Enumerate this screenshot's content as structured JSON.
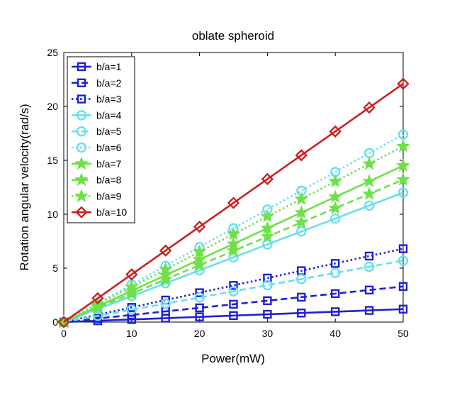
{
  "chart_data": {
    "type": "line",
    "title": "oblate spheroid",
    "xlabel": "Power(mW)",
    "ylabel": "Rotation angular velocity(rad/s)",
    "xlim": [
      0,
      50
    ],
    "ylim": [
      0,
      25
    ],
    "xticks": [
      0,
      10,
      20,
      30,
      40,
      50
    ],
    "yticks": [
      0,
      5,
      10,
      15,
      20,
      25
    ],
    "grid": false,
    "legend_position": "top-left",
    "x": [
      0,
      5,
      10,
      15,
      20,
      25,
      30,
      35,
      40,
      45,
      50
    ],
    "series": [
      {
        "name": "b/a=1",
        "color": "#1f1fd6",
        "dash": "solid",
        "marker": "square",
        "values": [
          0,
          0.12,
          0.24,
          0.36,
          0.48,
          0.6,
          0.72,
          0.84,
          0.96,
          1.08,
          1.2
        ]
      },
      {
        "name": "b/a=2",
        "color": "#1f1fd6",
        "dash": "dashed",
        "marker": "square",
        "values": [
          0,
          0.33,
          0.66,
          0.99,
          1.32,
          1.65,
          1.98,
          2.31,
          2.64,
          2.97,
          3.3
        ]
      },
      {
        "name": "b/a=3",
        "color": "#1f1fd6",
        "dash": "dotted",
        "marker": "square",
        "values": [
          0,
          0.68,
          1.36,
          2.04,
          2.72,
          3.4,
          4.08,
          4.76,
          5.44,
          6.12,
          6.8
        ]
      },
      {
        "name": "b/a=4",
        "color": "#66e0f0",
        "dash": "solid",
        "marker": "circle",
        "values": [
          0,
          1.2,
          2.4,
          3.6,
          4.8,
          6.0,
          7.2,
          8.4,
          9.6,
          10.8,
          12.0
        ]
      },
      {
        "name": "b/a=5",
        "color": "#66e0f0",
        "dash": "dashed",
        "marker": "circle",
        "values": [
          0,
          0.57,
          1.14,
          1.71,
          2.28,
          2.85,
          3.42,
          3.99,
          4.56,
          5.13,
          5.7
        ]
      },
      {
        "name": "b/a=6",
        "color": "#66e0f0",
        "dash": "dotted",
        "marker": "circle",
        "values": [
          0,
          1.74,
          3.48,
          5.22,
          6.96,
          8.7,
          10.44,
          12.18,
          13.92,
          15.66,
          17.4
        ]
      },
      {
        "name": "b/a=7",
        "color": "#6fe04a",
        "dash": "solid",
        "marker": "star",
        "values": [
          0,
          1.45,
          2.9,
          4.35,
          5.8,
          7.25,
          8.7,
          10.15,
          11.6,
          13.05,
          14.5
        ]
      },
      {
        "name": "b/a=8",
        "color": "#6fe04a",
        "dash": "dashed",
        "marker": "star",
        "values": [
          0,
          1.32,
          2.64,
          3.96,
          5.28,
          6.6,
          7.92,
          9.24,
          10.56,
          11.88,
          13.2
        ]
      },
      {
        "name": "b/a=9",
        "color": "#6fe04a",
        "dash": "dotted",
        "marker": "star",
        "values": [
          0,
          1.63,
          3.26,
          4.89,
          6.52,
          8.15,
          9.78,
          11.41,
          13.04,
          14.67,
          16.3
        ]
      },
      {
        "name": "b/a=10",
        "color": "#cc2020",
        "dash": "solid",
        "marker": "diamond",
        "values": [
          0,
          2.21,
          4.42,
          6.63,
          8.84,
          11.05,
          13.26,
          15.47,
          17.68,
          19.89,
          22.1
        ]
      }
    ]
  }
}
